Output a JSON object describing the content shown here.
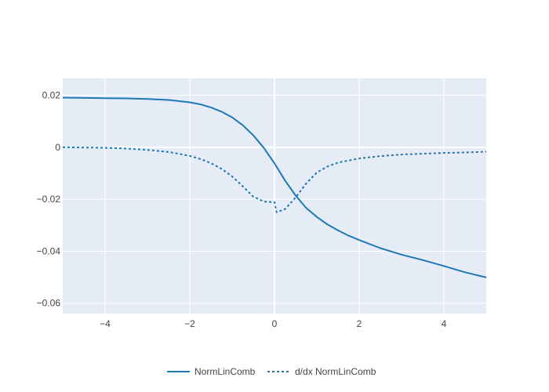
{
  "chart_data": {
    "type": "line",
    "xlim": [
      -5,
      5
    ],
    "ylim": [
      -0.064,
      0.0265
    ],
    "x_ticks": [
      -4,
      -2,
      0,
      2,
      4
    ],
    "x_tick_labels": [
      "−4",
      "−2",
      "0",
      "2",
      "4"
    ],
    "y_ticks": [
      0.02,
      0,
      -0.02,
      -0.04,
      -0.06
    ],
    "y_tick_labels": [
      "0.02",
      "0",
      "−0.02",
      "−0.04",
      "−0.06"
    ],
    "grid": true,
    "legend_position": "bottom-center",
    "colors": {
      "plot_bg": "#E5ECF6",
      "grid": "#ffffff",
      "series": "#1f77b4"
    },
    "series": [
      {
        "name": "NormLinComb",
        "style": "solid",
        "x": [
          -5,
          -4,
          -3.5,
          -3,
          -2.5,
          -2,
          -1.75,
          -1.5,
          -1.25,
          -1,
          -0.75,
          -0.5,
          -0.25,
          0,
          0.25,
          0.5,
          0.75,
          1,
          1.25,
          1.5,
          1.75,
          2,
          2.5,
          3,
          3.5,
          4,
          4.5,
          5
        ],
        "values": [
          0.0191,
          0.0189,
          0.0188,
          0.0186,
          0.0182,
          0.0173,
          0.0165,
          0.0153,
          0.0137,
          0.0115,
          0.0085,
          0.0046,
          -0.0003,
          -0.0062,
          -0.0128,
          -0.0186,
          -0.0234,
          -0.0268,
          -0.0297,
          -0.032,
          -0.034,
          -0.0357,
          -0.0388,
          -0.0413,
          -0.0434,
          -0.0457,
          -0.0481,
          -0.0501
        ]
      },
      {
        "name": "d/dx NormLinComb",
        "style": "dotted",
        "x": [
          -5,
          -4,
          -3.5,
          -3,
          -2.5,
          -2,
          -1.75,
          -1.5,
          -1.25,
          -1,
          -0.75,
          -0.5,
          -0.25,
          -0.05,
          0,
          0.05,
          0.25,
          0.5,
          0.75,
          1,
          1.25,
          1.5,
          2,
          2.5,
          3,
          3.5,
          4,
          4.5,
          5
        ],
        "values": [
          0.0,
          -0.0002,
          -0.0005,
          -0.001,
          -0.0018,
          -0.0033,
          -0.0045,
          -0.0061,
          -0.0083,
          -0.0112,
          -0.015,
          -0.019,
          -0.0209,
          -0.0211,
          -0.0211,
          -0.025,
          -0.0238,
          -0.0193,
          -0.0139,
          -0.0097,
          -0.0074,
          -0.0059,
          -0.0043,
          -0.0034,
          -0.0028,
          -0.0025,
          -0.0022,
          -0.002,
          -0.0017
        ]
      }
    ]
  }
}
